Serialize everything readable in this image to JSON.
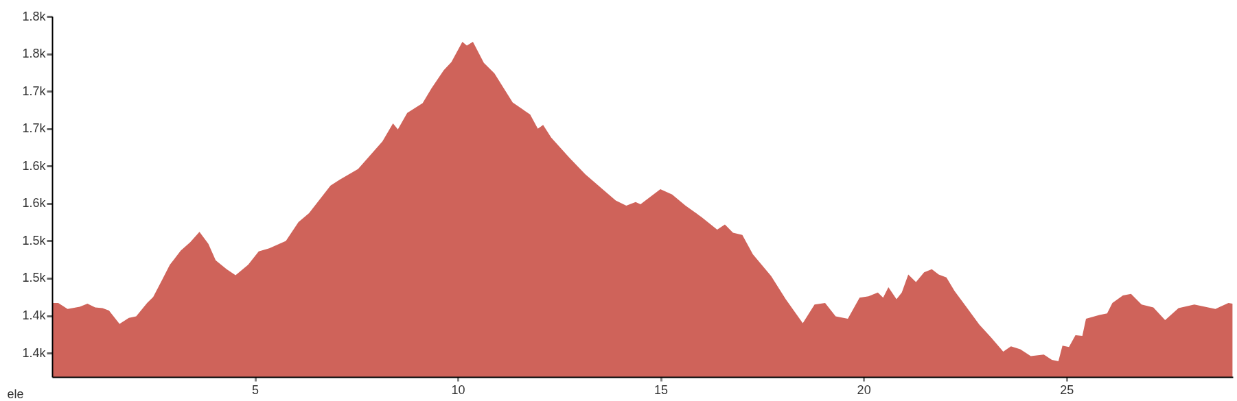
{
  "chart_data": {
    "type": "area",
    "ylabel": "ele",
    "x": [
      0,
      0.15,
      0.38,
      0.68,
      0.87,
      1.06,
      1.24,
      1.4,
      1.66,
      1.89,
      2.07,
      2.34,
      2.49,
      2.71,
      2.9,
      3.17,
      3.4,
      3.63,
      3.85,
      4.03,
      4.3,
      4.52,
      4.83,
      5.09,
      5.35,
      5.76,
      6.07,
      6.33,
      6.86,
      7.09,
      7.54,
      8.14,
      8.4,
      8.52,
      8.75,
      9.13,
      9.35,
      9.65,
      9.84,
      10.11,
      10.22,
      10.37,
      10.64,
      10.9,
      11.35,
      11.78,
      11.97,
      12.1,
      12.3,
      12.75,
      13.14,
      13.59,
      13.89,
      14.15,
      14.38,
      14.5,
      14.99,
      15.28,
      15.61,
      16.0,
      16.39,
      16.58,
      16.78,
      17.01,
      17.27,
      17.72,
      18.08,
      18.5,
      18.79,
      19.05,
      19.31,
      19.61,
      19.9,
      20.12,
      20.35,
      20.48,
      20.61,
      20.81,
      20.94,
      21.1,
      21.29,
      21.49,
      21.68,
      21.85,
      22.04,
      22.24,
      22.5,
      22.85,
      23.14,
      23.44,
      23.63,
      23.86,
      24.12,
      24.44,
      24.64,
      24.8,
      24.9,
      25.06,
      25.22,
      25.39,
      25.48,
      25.81,
      26.0,
      26.13,
      26.39,
      26.59,
      26.85,
      27.14,
      27.43,
      27.76,
      28.15,
      28.67,
      28.99,
      29.09
    ],
    "series": [
      {
        "color": "#cf635a",
        "values": [
          1417,
          1417,
          1409,
          1412,
          1416,
          1411,
          1410,
          1407,
          1389,
          1397,
          1399,
          1417,
          1425,
          1448,
          1468,
          1487,
          1498,
          1512,
          1496,
          1474,
          1462,
          1454,
          1468,
          1486,
          1490,
          1500,
          1525,
          1537,
          1574,
          1582,
          1596,
          1633,
          1657,
          1649,
          1671,
          1684,
          1704,
          1728,
          1739,
          1766,
          1761,
          1766,
          1738,
          1724,
          1685,
          1669,
          1650,
          1655,
          1638,
          1611,
          1589,
          1568,
          1554,
          1547,
          1552,
          1549,
          1569,
          1562,
          1547,
          1532,
          1515,
          1522,
          1511,
          1508,
          1482,
          1453,
          1422,
          1390,
          1415,
          1417,
          1399,
          1396,
          1424,
          1426,
          1431,
          1424,
          1438,
          1422,
          1431,
          1455,
          1445,
          1458,
          1462,
          1455,
          1451,
          1433,
          1414,
          1388,
          1371,
          1352,
          1359,
          1355,
          1346,
          1348,
          1341,
          1339,
          1360,
          1358,
          1374,
          1373,
          1396,
          1401,
          1403,
          1417,
          1427,
          1429,
          1415,
          1411,
          1394,
          1410,
          1415,
          1409,
          1417,
          1416
        ]
      }
    ],
    "xlim": [
      0,
      29.1
    ],
    "xticks": [
      5,
      10,
      15,
      20,
      25
    ],
    "ylim": [
      1318,
      1800
    ],
    "yticks": [
      {
        "value": 1800,
        "label": "1.8k"
      },
      {
        "value": 1750,
        "label": "1.8k"
      },
      {
        "value": 1700,
        "label": "1.7k"
      },
      {
        "value": 1650,
        "label": "1.7k"
      },
      {
        "value": 1600,
        "label": "1.6k"
      },
      {
        "value": 1550,
        "label": "1.6k"
      },
      {
        "value": 1500,
        "label": "1.5k"
      },
      {
        "value": 1450,
        "label": "1.5k"
      },
      {
        "value": 1400,
        "label": "1.4k"
      },
      {
        "value": 1350,
        "label": "1.4k"
      }
    ],
    "grid": false
  }
}
